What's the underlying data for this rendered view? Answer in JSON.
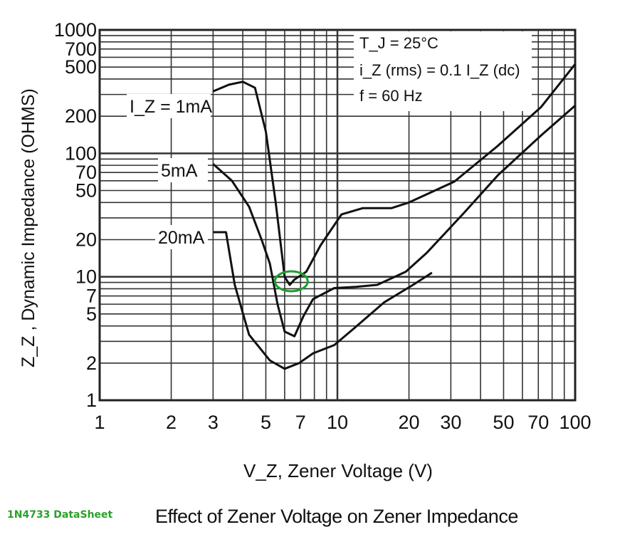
{
  "chart_data": {
    "type": "line",
    "title": "Effect of Zener Voltage on Zener Impedance",
    "xlabel": "V_Z, Zener Voltage (V)",
    "ylabel": "Z_Z , Dynamic Impedance (OHMS)",
    "xscale": "log",
    "yscale": "log",
    "xlim": [
      1,
      100
    ],
    "ylim": [
      1,
      1000
    ],
    "grid": true,
    "x_ticks": [
      "1",
      "2",
      "3",
      "5",
      "7",
      "10",
      "20",
      "30",
      "50",
      "70",
      "100"
    ],
    "x_tick_values": [
      1,
      2,
      3,
      5,
      7,
      10,
      20,
      30,
      50,
      70,
      100
    ],
    "y_ticks": [
      "1",
      "2",
      "5",
      "7",
      "10",
      "20",
      "50",
      "70",
      "100",
      "200",
      "500",
      "700",
      "1000"
    ],
    "y_tick_values": [
      1,
      2,
      5,
      7,
      10,
      20,
      50,
      70,
      100,
      200,
      500,
      700,
      1000
    ],
    "conditions": {
      "tj": "T_J = 25°C",
      "iz": "i_Z (rms) = 0.1 I_Z (dc)",
      "f": "f = 60 Hz"
    },
    "series": [
      {
        "name": "I_Z = 1mA",
        "x": [
          3,
          3.5,
          4,
          4.5,
          5,
          5.5,
          6,
          6.3,
          6.6,
          7.4,
          8.5,
          10.4,
          12.8,
          16.9,
          20,
          31,
          47,
          72,
          100
        ],
        "y": [
          318,
          360,
          380,
          340,
          150,
          40,
          10,
          8.6,
          9.5,
          11,
          18,
          32,
          36,
          36,
          40,
          59,
          114,
          238,
          528
        ]
      },
      {
        "name": "5mA",
        "x": [
          3,
          3.6,
          4.25,
          4.8,
          5.2,
          5.6,
          6,
          6.6,
          7.2,
          7.9,
          9.7,
          12,
          14.7,
          19.4,
          23.8,
          33.6,
          47.5,
          72,
          100
        ],
        "y": [
          82,
          60,
          37,
          20,
          12.8,
          6,
          3.6,
          3.3,
          4.8,
          6.6,
          8.1,
          8.3,
          8.6,
          11,
          15.7,
          32,
          67,
          140,
          244
        ]
      },
      {
        "name": "20mA",
        "x": [
          3,
          3.4,
          3.7,
          4.25,
          5.2,
          6,
          6.9,
          7.9,
          9.7,
          11.9,
          15.7,
          20.8,
          25
        ],
        "y": [
          23,
          23,
          8.6,
          3.4,
          2.1,
          1.8,
          2.0,
          2.4,
          2.8,
          3.9,
          6.2,
          8.6,
          10.8
        ]
      }
    ],
    "highlight": {
      "label": "1N4733 operating point",
      "x": 6.4,
      "y": 9.2,
      "color": "#1f9e2e"
    }
  },
  "footer": {
    "source": "1N4733 DataSheet"
  }
}
